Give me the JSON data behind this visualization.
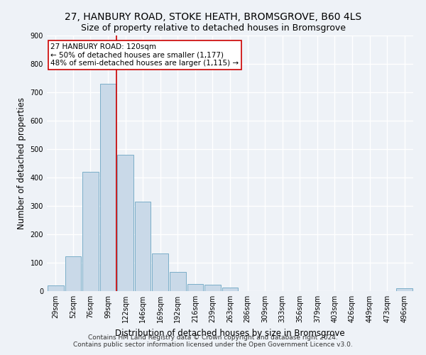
{
  "title": "27, HANBURY ROAD, STOKE HEATH, BROMSGROVE, B60 4LS",
  "subtitle": "Size of property relative to detached houses in Bromsgrove",
  "xlabel": "Distribution of detached houses by size in Bromsgrove",
  "ylabel": "Number of detached properties",
  "bar_color": "#c9d9e8",
  "bar_edge_color": "#7aaec8",
  "categories": [
    "29sqm",
    "52sqm",
    "76sqm",
    "99sqm",
    "122sqm",
    "146sqm",
    "169sqm",
    "192sqm",
    "216sqm",
    "239sqm",
    "263sqm",
    "286sqm",
    "309sqm",
    "333sqm",
    "356sqm",
    "379sqm",
    "403sqm",
    "426sqm",
    "449sqm",
    "473sqm",
    "496sqm"
  ],
  "values": [
    20,
    122,
    420,
    730,
    480,
    315,
    132,
    67,
    25,
    22,
    12,
    0,
    0,
    0,
    0,
    0,
    0,
    0,
    0,
    0,
    10
  ],
  "vline_x_idx": 4,
  "vline_color": "#cc0000",
  "annotation_text": "27 HANBURY ROAD: 120sqm\n← 50% of detached houses are smaller (1,177)\n48% of semi-detached houses are larger (1,115) →",
  "annotation_box_color": "#ffffff",
  "annotation_box_edge": "#cc0000",
  "ylim": [
    0,
    900
  ],
  "yticks": [
    0,
    100,
    200,
    300,
    400,
    500,
    600,
    700,
    800,
    900
  ],
  "background_color": "#eef2f7",
  "plot_bg_color": "#eef2f7",
  "grid_color": "#ffffff",
  "footer": "Contains HM Land Registry data © Crown copyright and database right 2024.\nContains public sector information licensed under the Open Government Licence v3.0.",
  "title_fontsize": 10,
  "subtitle_fontsize": 9,
  "xlabel_fontsize": 8.5,
  "ylabel_fontsize": 8.5,
  "tick_fontsize": 7,
  "annotation_fontsize": 7.5,
  "footer_fontsize": 6.5
}
